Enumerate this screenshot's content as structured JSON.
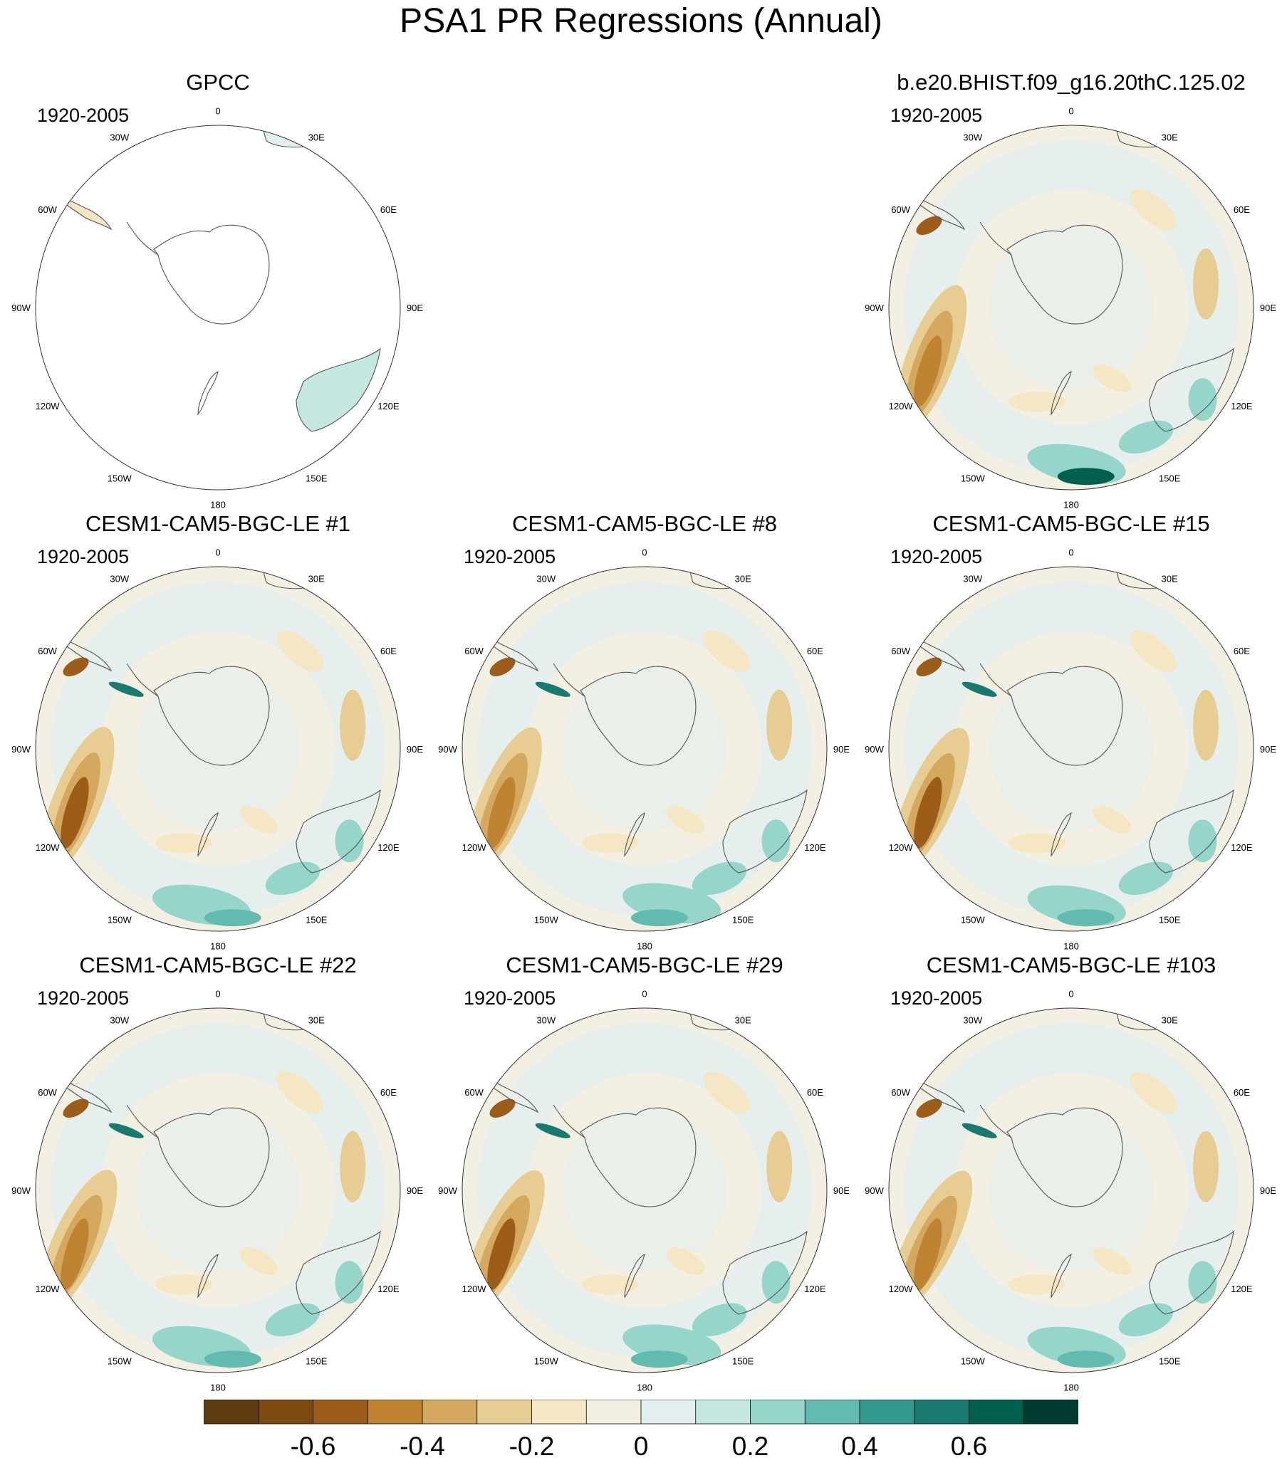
{
  "title": "PSA1 PR Regressions (Annual)",
  "colors": {
    "scale": [
      "#5e3c0f",
      "#7c4a10",
      "#9c5d1a",
      "#bf8432",
      "#d4a85e",
      "#e8cd93",
      "#f5e6c4",
      "#f4efe3",
      "#e3efee",
      "#c4e7e0",
      "#95d5ca",
      "#63baae",
      "#349a8d",
      "#187a6e",
      "#006050",
      "#003c30"
    ],
    "coast": "#555555",
    "map_border": "#333333",
    "ocean_background": "#f4efe3"
  },
  "longitude_labels": [
    "0",
    "30E",
    "60E",
    "90E",
    "120E",
    "150E",
    "180",
    "150W",
    "120W",
    "90W",
    "60W",
    "30W"
  ],
  "panels": [
    {
      "title": "GPCC",
      "period": "1920-2005",
      "mode": "observed",
      "accent": 0
    },
    {
      "title": "b.e20.BHIST.f09_g16.20thC.125.02",
      "period": "1920-2005",
      "mode": "model",
      "accent": 1
    },
    {
      "title": "CESM1-CAM5-BGC-LE #1",
      "period": "1920-2005",
      "mode": "model",
      "accent": 2
    },
    {
      "title": "CESM1-CAM5-BGC-LE #8",
      "period": "1920-2005",
      "mode": "model",
      "accent": 3
    },
    {
      "title": "CESM1-CAM5-BGC-LE #15",
      "period": "1920-2005",
      "mode": "model",
      "accent": 4
    },
    {
      "title": "CESM1-CAM5-BGC-LE #22",
      "period": "1920-2005",
      "mode": "model",
      "accent": 5
    },
    {
      "title": "CESM1-CAM5-BGC-LE #29",
      "period": "1920-2005",
      "mode": "model",
      "accent": 6
    },
    {
      "title": "CESM1-CAM5-BGC-LE #103",
      "period": "1920-2005",
      "mode": "model",
      "accent": 7
    }
  ],
  "colorbar": {
    "labels": [
      "-0.6",
      "-0.4",
      "-0.2",
      "0",
      "0.2",
      "0.4",
      "0.6"
    ],
    "label_values": [
      -0.6,
      -0.4,
      -0.2,
      0,
      0.2,
      0.4,
      0.6
    ],
    "min": -0.8,
    "max": 0.8
  }
}
